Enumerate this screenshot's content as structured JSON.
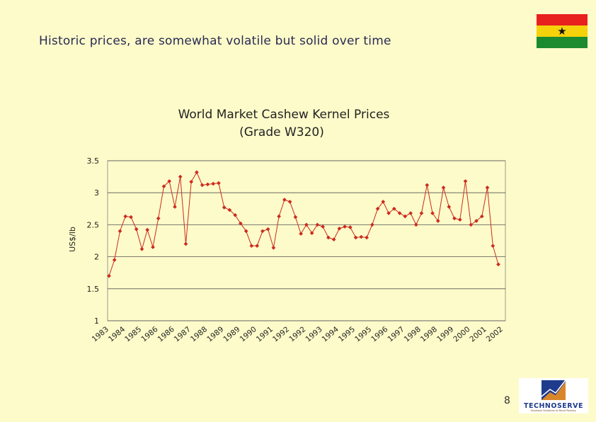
{
  "slide": {
    "title": "Historic prices, are somewhat volatile but solid over time",
    "page_number": "8"
  },
  "flag": {
    "colors": [
      "#e8201e",
      "#f5d20a",
      "#1c8a2e"
    ],
    "star": "★"
  },
  "logo": {
    "name": "TECHNOSERVE",
    "tagline": "Business Solutions to Rural Poverty",
    "colors": {
      "blue": "#1f3c8c",
      "orange": "#d9862b",
      "brown": "#6b4a1a"
    }
  },
  "chart_data": {
    "type": "line",
    "title": "World Market Cashew Kernel Prices",
    "subtitle": "(Grade W320)",
    "ylabel": "US$/lb",
    "xlabel": "",
    "ylim": [
      1,
      3.5
    ],
    "yticks": [
      1,
      1.5,
      2,
      2.5,
      3,
      3.5
    ],
    "ytick_labels": [
      "1",
      "1.5",
      "2",
      "2.5",
      "3",
      "3.5"
    ],
    "grid": "horizontal",
    "line_color": "#cc2a1e",
    "x_tick_labels": [
      "1983",
      "1984",
      "1985",
      "1986",
      "1986",
      "1987",
      "1988",
      "1989",
      "1989",
      "1990",
      "1991",
      "1992",
      "1992",
      "1993",
      "1994",
      "1995",
      "1995",
      "1996",
      "1997",
      "1998",
      "1998",
      "1999",
      "2000",
      "2001",
      "2002"
    ],
    "values": [
      1.7,
      1.95,
      2.4,
      2.63,
      2.62,
      2.43,
      2.12,
      2.42,
      2.15,
      2.6,
      3.1,
      3.18,
      2.78,
      3.25,
      2.2,
      3.17,
      3.32,
      3.12,
      3.13,
      3.14,
      3.15,
      2.77,
      2.73,
      2.65,
      2.52,
      2.4,
      2.17,
      2.17,
      2.4,
      2.43,
      2.14,
      2.63,
      2.89,
      2.86,
      2.62,
      2.36,
      2.5,
      2.37,
      2.5,
      2.47,
      2.3,
      2.27,
      2.44,
      2.47,
      2.46,
      2.3,
      2.31,
      2.3,
      2.5,
      2.75,
      2.86,
      2.68,
      2.75,
      2.68,
      2.63,
      2.68,
      2.5,
      2.68,
      3.12,
      2.68,
      2.56,
      3.08,
      2.78,
      2.6,
      2.58,
      3.18,
      2.5,
      2.56,
      2.63,
      3.08,
      2.17,
      1.88
    ]
  }
}
